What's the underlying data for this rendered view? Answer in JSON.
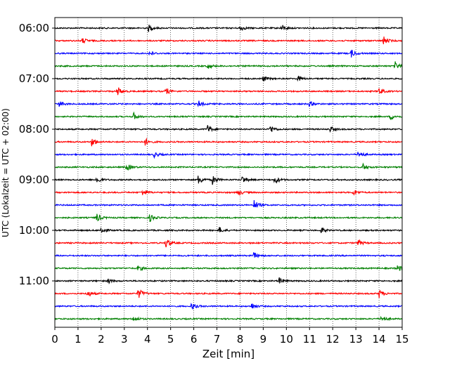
{
  "chart_data": {
    "type": "line",
    "title": "",
    "xlabel": "Zeit  [min]",
    "ylabel": "UTC (Lokalzeit = UTC + 02:00)",
    "xlim": [
      0,
      15
    ],
    "x_ticks": [
      0,
      1,
      2,
      3,
      4,
      5,
      6,
      7,
      8,
      9,
      10,
      11,
      12,
      13,
      14,
      15
    ],
    "x_tick_labels": [
      "0",
      "1",
      "2",
      "3",
      "4",
      "5",
      "6",
      "7",
      "8",
      "9",
      "10",
      "11",
      "12",
      "13",
      "14",
      "15"
    ],
    "y_tick_labels": [
      {
        "row": 0,
        "label": "06:00"
      },
      {
        "row": 4,
        "label": "07:00"
      },
      {
        "row": 8,
        "label": "08:00"
      },
      {
        "row": 12,
        "label": "09:00"
      },
      {
        "row": 16,
        "label": "10:00"
      },
      {
        "row": 20,
        "label": "11:00"
      }
    ],
    "vertical_grid": "dotted",
    "trace_colors": [
      "#000000",
      "#ff0000",
      "#0000ff",
      "#008000"
    ],
    "row_minutes": 15,
    "traces": [
      {
        "start": "06:00",
        "color": "#000000",
        "events": [
          [
            4.05,
            1.6
          ],
          [
            8.0,
            1.4
          ],
          [
            9.8,
            1.6
          ]
        ]
      },
      {
        "start": "06:15",
        "color": "#ff0000",
        "events": [
          [
            1.2,
            1.3
          ],
          [
            14.2,
            2.0
          ]
        ]
      },
      {
        "start": "06:30",
        "color": "#0000ff",
        "events": [
          [
            4.1,
            1.2
          ],
          [
            12.8,
            1.8
          ]
        ]
      },
      {
        "start": "06:45",
        "color": "#008000",
        "events": [
          [
            6.6,
            1.3
          ],
          [
            14.7,
            1.9
          ]
        ]
      },
      {
        "start": "07:00",
        "color": "#000000",
        "events": [
          [
            9.0,
            1.3
          ],
          [
            10.5,
            1.2
          ]
        ]
      },
      {
        "start": "07:15",
        "color": "#ff0000",
        "events": [
          [
            2.7,
            2.2
          ],
          [
            4.8,
            1.6
          ],
          [
            14.0,
            1.8
          ]
        ]
      },
      {
        "start": "07:30",
        "color": "#0000ff",
        "events": [
          [
            0.2,
            1.4
          ],
          [
            6.2,
            1.5
          ],
          [
            11.0,
            1.2
          ]
        ]
      },
      {
        "start": "07:45",
        "color": "#008000",
        "events": [
          [
            3.4,
            1.7
          ],
          [
            14.5,
            1.6
          ]
        ]
      },
      {
        "start": "08:00",
        "color": "#000000",
        "events": [
          [
            6.6,
            1.9
          ],
          [
            9.3,
            2.0
          ],
          [
            11.9,
            1.4
          ]
        ]
      },
      {
        "start": "08:15",
        "color": "#ff0000",
        "events": [
          [
            1.6,
            2.2
          ],
          [
            3.9,
            1.6
          ]
        ]
      },
      {
        "start": "08:30",
        "color": "#0000ff",
        "events": [
          [
            4.3,
            1.4
          ],
          [
            13.1,
            2.1
          ]
        ]
      },
      {
        "start": "08:45",
        "color": "#008000",
        "events": [
          [
            3.1,
            1.9
          ],
          [
            13.3,
            1.6
          ]
        ]
      },
      {
        "start": "09:00",
        "color": "#000000",
        "events": [
          [
            1.8,
            2.0
          ],
          [
            6.2,
            2.4
          ],
          [
            6.8,
            2.2
          ],
          [
            8.1,
            1.9
          ],
          [
            9.5,
            1.8
          ]
        ]
      },
      {
        "start": "09:15",
        "color": "#ff0000",
        "events": [
          [
            3.8,
            1.8
          ],
          [
            7.9,
            1.6
          ],
          [
            12.9,
            1.4
          ]
        ]
      },
      {
        "start": "09:30",
        "color": "#0000ff",
        "events": [
          [
            8.6,
            2.4
          ]
        ]
      },
      {
        "start": "09:45",
        "color": "#008000",
        "events": [
          [
            1.8,
            2.2
          ],
          [
            4.1,
            1.8
          ]
        ]
      },
      {
        "start": "10:00",
        "color": "#000000",
        "events": [
          [
            2.0,
            1.8
          ],
          [
            7.1,
            1.5
          ],
          [
            11.5,
            1.3
          ]
        ]
      },
      {
        "start": "10:15",
        "color": "#ff0000",
        "events": [
          [
            4.8,
            2.2
          ],
          [
            13.1,
            1.5
          ]
        ]
      },
      {
        "start": "10:30",
        "color": "#0000ff",
        "events": [
          [
            8.6,
            1.5
          ]
        ]
      },
      {
        "start": "10:45",
        "color": "#008000",
        "events": [
          [
            3.6,
            1.4
          ],
          [
            14.8,
            1.6
          ]
        ]
      },
      {
        "start": "11:00",
        "color": "#000000",
        "events": [
          [
            2.3,
            1.3
          ],
          [
            9.7,
            1.6
          ]
        ]
      },
      {
        "start": "11:15",
        "color": "#ff0000",
        "events": [
          [
            1.4,
            1.8
          ],
          [
            3.6,
            2.6
          ],
          [
            14.0,
            2.0
          ]
        ]
      },
      {
        "start": "11:30",
        "color": "#0000ff",
        "events": [
          [
            5.9,
            1.8
          ],
          [
            8.5,
            1.5
          ]
        ]
      },
      {
        "start": "11:45",
        "color": "#008000",
        "events": [
          [
            3.4,
            1.4
          ],
          [
            14.1,
            1.6
          ]
        ]
      }
    ]
  }
}
